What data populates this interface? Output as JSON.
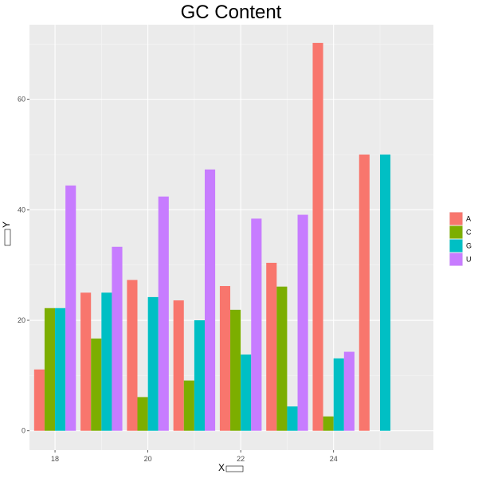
{
  "chart_data": {
    "type": "bar",
    "title": "GC Content",
    "xlabel": "X",
    "ylabel": "Y",
    "categories": [
      18,
      19,
      20,
      21,
      22,
      23,
      24,
      25
    ],
    "x_ticks": [
      18,
      20,
      22,
      24
    ],
    "y_ticks": [
      0,
      20,
      40,
      60
    ],
    "ylim": [
      -3.5,
      73.5
    ],
    "xlim": [
      17.45,
      26.15
    ],
    "grid": true,
    "legend_position": "right",
    "series": [
      {
        "name": "A",
        "color": "#F8766D",
        "values": [
          11.1,
          25.0,
          27.3,
          23.6,
          26.2,
          30.4,
          70.2,
          50.0
        ]
      },
      {
        "name": "C",
        "color": "#7CAE00",
        "values": [
          22.2,
          16.7,
          6.1,
          9.1,
          21.9,
          26.1,
          2.6,
          null
        ]
      },
      {
        "name": "G",
        "color": "#00BFC4",
        "values": [
          22.2,
          25.0,
          24.2,
          20.0,
          13.8,
          4.4,
          13.1,
          50.0
        ]
      },
      {
        "name": "U",
        "color": "#C77CFF",
        "values": [
          44.4,
          33.3,
          42.4,
          47.3,
          38.4,
          39.1,
          14.3,
          null
        ]
      }
    ]
  }
}
